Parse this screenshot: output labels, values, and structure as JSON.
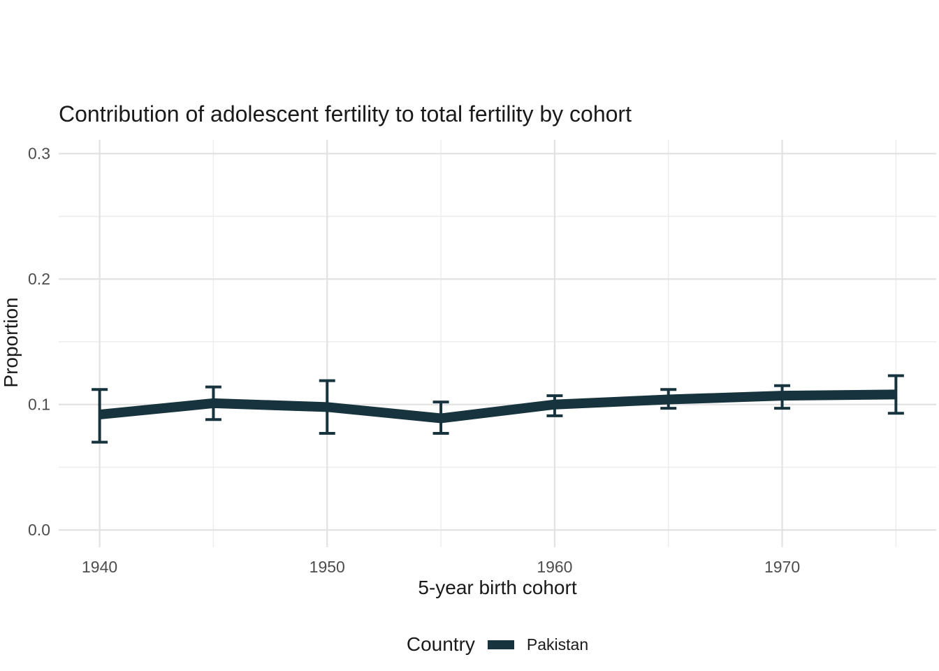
{
  "title": "Contribution of adolescent fertility to total fertility by cohort",
  "chart_data": {
    "type": "line",
    "title": "Contribution of adolescent fertility to total fertility by cohort",
    "xlabel": "5-year birth cohort",
    "ylabel": "Proportion",
    "x": [
      1940,
      1945,
      1950,
      1955,
      1960,
      1965,
      1970,
      1975
    ],
    "series": [
      {
        "name": "Pakistan",
        "values": [
          0.092,
          0.101,
          0.098,
          0.089,
          0.1,
          0.104,
          0.107,
          0.108
        ],
        "ci_low": [
          0.07,
          0.088,
          0.077,
          0.077,
          0.091,
          0.097,
          0.097,
          0.093
        ],
        "ci_high": [
          0.112,
          0.114,
          0.119,
          0.102,
          0.107,
          0.112,
          0.115,
          0.123
        ]
      }
    ],
    "x_ticks": [
      1940,
      1950,
      1960,
      1970
    ],
    "x_minor_ticks": [
      1945,
      1955,
      1965,
      1975
    ],
    "y_ticks": [
      0.0,
      0.1,
      0.2,
      0.3
    ],
    "y_minor_ticks": [
      0.05,
      0.15,
      0.25
    ],
    "xlim": [
      1938.2,
      1976.77
    ],
    "ylim": [
      -0.0138,
      0.311
    ],
    "grid": "major+minor",
    "legend_position": "bottom",
    "error_bars": true,
    "colors": {
      "line": "#17333E",
      "grid_major": "#E2E2E2",
      "grid_minor": "#ECECEC",
      "tick_label": "#4D4D4D",
      "text": "#1A1A1A"
    }
  },
  "legend": {
    "title": "Country",
    "items": [
      {
        "label": "Pakistan",
        "color": "#17333E"
      }
    ]
  }
}
